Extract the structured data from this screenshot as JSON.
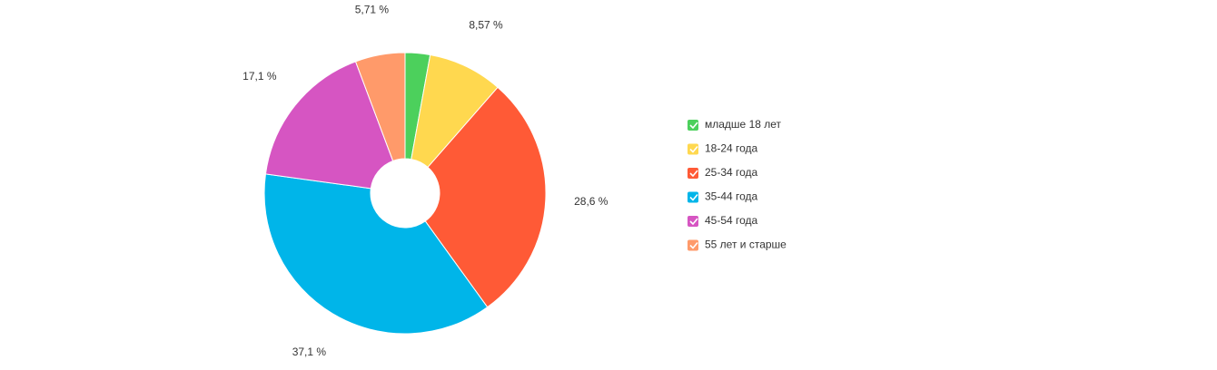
{
  "chart_data": {
    "type": "pie",
    "categories": [
      "младше 18 лет",
      "18-24 года",
      "25-34 года",
      "35-44 года",
      "45-54 года",
      "55 лет и старше"
    ],
    "values": [
      2.86,
      8.57,
      28.6,
      37.1,
      17.1,
      5.71
    ],
    "value_labels": [
      null,
      "8,57 %",
      "28,6 %",
      "37,1 %",
      "17,1 %",
      "5,71 %"
    ],
    "colors": [
      "#4cd05c",
      "#ffd84f",
      "#ff5a36",
      "#00b5e9",
      "#d655c2",
      "#ff9a6a"
    ],
    "legend": "right"
  }
}
